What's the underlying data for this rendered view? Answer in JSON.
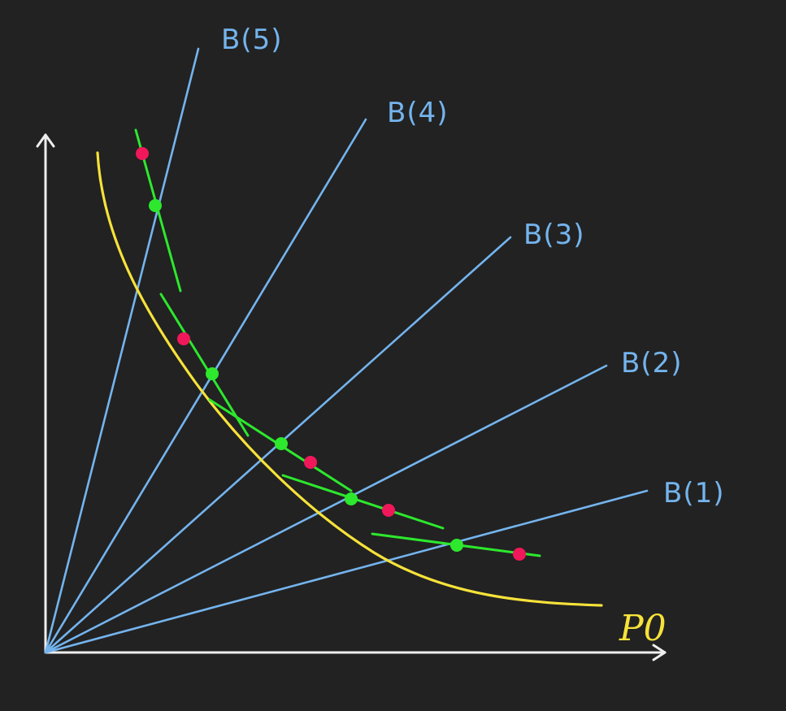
{
  "diagram": {
    "rays": [
      {
        "id": "b5",
        "label": "B(5)"
      },
      {
        "id": "b4",
        "label": "B(4)"
      },
      {
        "id": "b3",
        "label": "B(3)"
      },
      {
        "id": "b2",
        "label": "B(2)"
      },
      {
        "id": "b1",
        "label": "B(1)"
      }
    ],
    "curve_label": "P0",
    "colors": {
      "background": "#222222",
      "axis": "#eeeeee",
      "ray": "#74b4ee",
      "curve": "#f6e23a",
      "tangent": "#2de82d",
      "green_point": "#2de82d",
      "red_point": "#f0185a"
    }
  }
}
